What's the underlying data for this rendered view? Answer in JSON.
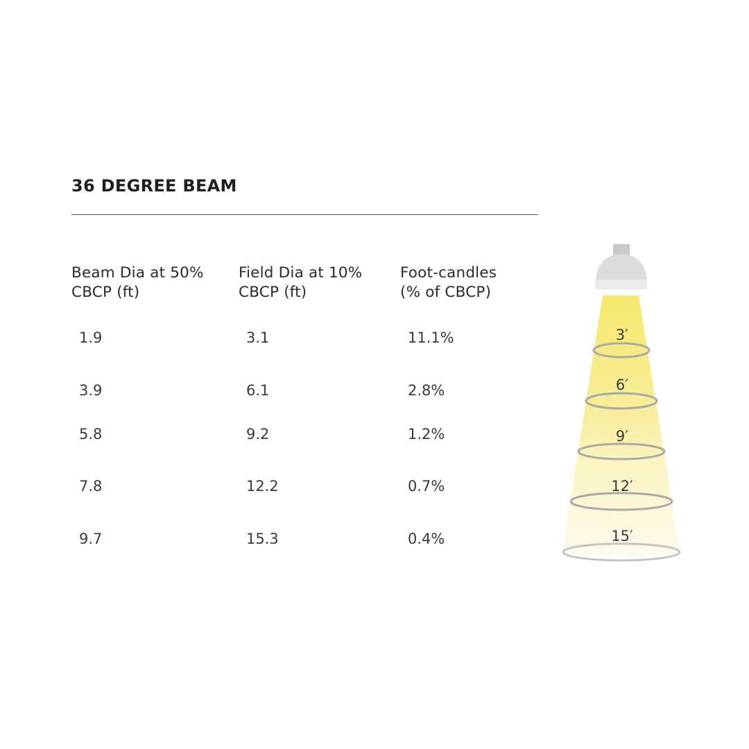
{
  "title": "36 DEGREE BEAM",
  "headers": [
    "Beam Dia at 50%\nCBCP (ft)",
    "Field Dia at 10%\nCBCP (ft)",
    "Foot-candles\n(% of CBCP)"
  ],
  "rows": [
    [
      "1.9",
      "3.1",
      "11.1%"
    ],
    [
      "3.9",
      "6.1",
      "2.8%"
    ],
    [
      "5.8",
      "9.2",
      "1.2%"
    ],
    [
      "7.8",
      "12.2",
      "0.7%"
    ],
    [
      "9.7",
      "15.3",
      "0.4%"
    ]
  ],
  "distances": [
    "3′",
    "6′",
    "9′",
    "12′",
    "15′"
  ],
  "colors": {
    "beam": "#f5e86a",
    "fixture_top": "#c9c9c9",
    "fixture_dome": "#dcdcdc",
    "fixture_rim": "#e9eaea",
    "ring": "#a9a9a9",
    "rule": "#555555"
  }
}
